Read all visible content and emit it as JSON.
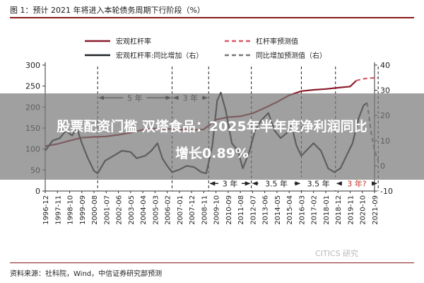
{
  "figure": {
    "title": "图 1：预计 2021 年将进入本轮债务周期下行阶段（%）",
    "source": "资料来源：社科院，Wind，中信证券研究部预测",
    "watermark": "CITICS 研究"
  },
  "overlay": {
    "line1": "股票配资门槛 双塔食品：2025年半年度净利润同比",
    "line2": "增长0.89%",
    "color": "#787878"
  },
  "chart_data": {
    "type": "line",
    "colors": {
      "leverage": "#8b1e2b",
      "leverage_forecast": "#d65c6a",
      "yoy": "#1f2328",
      "yoy_forecast": "#777777"
    },
    "x_ticks": [
      "1996-12",
      "1997-11",
      "1998-10",
      "1999-09",
      "2000-08",
      "2001-07",
      "2002-06",
      "2003-05",
      "2004-04",
      "2005-03",
      "2006-02",
      "2007-01",
      "2007-12",
      "2008-11",
      "2009-10",
      "2010-09",
      "2011-08",
      "2012-07",
      "2013-06",
      "2014-05",
      "2015-04",
      "2016-03",
      "2017-02",
      "2018-01",
      "2018-12",
      "2019-11",
      "2020-10",
      "2021-09"
    ],
    "ylim_left": [
      0,
      300
    ],
    "yticks_left": [
      "0",
      "50",
      "100",
      "150",
      "200",
      "250",
      "300"
    ],
    "ylim_right": [
      -10,
      40
    ],
    "yticks_right": [
      "-10",
      "0",
      "10",
      "20",
      "30",
      "40"
    ],
    "legend": [
      {
        "label": "宏观杠杆率",
        "key": "leverage",
        "dash": false
      },
      {
        "label": "杠杆率预测值",
        "key": "leverage_forecast",
        "dash": true
      },
      {
        "label": "宏观杠杆率:同比增加（右）",
        "key": "yoy",
        "dash": false
      },
      {
        "label": "同比增加预测值（右）",
        "key": "yoy_forecast",
        "dash": true
      }
    ],
    "series": [
      {
        "name": "宏观杠杆率",
        "key": "leverage",
        "axis": "left",
        "points": [
          [
            0,
            107
          ],
          [
            1,
            112
          ],
          [
            2,
            120
          ],
          [
            3,
            127
          ],
          [
            4,
            129
          ],
          [
            5,
            130
          ],
          [
            6,
            134
          ],
          [
            7,
            139
          ],
          [
            8,
            146
          ],
          [
            9,
            149
          ],
          [
            10,
            148
          ],
          [
            11,
            147
          ],
          [
            12,
            145
          ],
          [
            13,
            147
          ],
          [
            14,
            170
          ],
          [
            15,
            176
          ],
          [
            16,
            178
          ],
          [
            17,
            185
          ],
          [
            18,
            198
          ],
          [
            19,
            212
          ],
          [
            20,
            228
          ],
          [
            21,
            238
          ],
          [
            22,
            241
          ],
          [
            23,
            243
          ],
          [
            24,
            246
          ],
          [
            25,
            249
          ],
          [
            25.5,
            263
          ]
        ]
      },
      {
        "name": "杠杆率预测值",
        "key": "leverage_forecast",
        "axis": "left",
        "points": [
          [
            25.5,
            263
          ],
          [
            26,
            267
          ],
          [
            26.6,
            269
          ],
          [
            27.3,
            270
          ]
        ]
      },
      {
        "name": "宏观杠杆率:同比增加（右）",
        "key": "yoy",
        "axis": "right",
        "points": [
          [
            0,
            6
          ],
          [
            0.6,
            10
          ],
          [
            1.2,
            11
          ],
          [
            1.7,
            14
          ],
          [
            2.2,
            12
          ],
          [
            2.6,
            15
          ],
          [
            3.0,
            9
          ],
          [
            3.5,
            3
          ],
          [
            4.0,
            -2
          ],
          [
            4.3,
            -3
          ],
          [
            4.9,
            2
          ],
          [
            5.6,
            4
          ],
          [
            6.3,
            6
          ],
          [
            7.0,
            5.5
          ],
          [
            7.5,
            3
          ],
          [
            8.2,
            4
          ],
          [
            8.7,
            6
          ],
          [
            9.2,
            9
          ],
          [
            9.6,
            3
          ],
          [
            10.0,
            0
          ],
          [
            10.4,
            -2.5
          ],
          [
            11.0,
            -1.5
          ],
          [
            11.6,
            0
          ],
          [
            12.2,
            -0.5
          ],
          [
            12.8,
            -2.5
          ],
          [
            13.2,
            -3
          ],
          [
            13.7,
            8
          ],
          [
            14.1,
            26
          ],
          [
            14.4,
            29
          ],
          [
            14.8,
            22
          ],
          [
            15.3,
            9
          ],
          [
            15.8,
            6
          ],
          [
            16.2,
            -1
          ],
          [
            16.7,
            5
          ],
          [
            17.2,
            14
          ],
          [
            17.7,
            18
          ],
          [
            18.3,
            21
          ],
          [
            18.8,
            14
          ],
          [
            19.3,
            11
          ],
          [
            19.8,
            13
          ],
          [
            20.2,
            16
          ],
          [
            20.6,
            8
          ],
          [
            21.0,
            4
          ],
          [
            21.4,
            6
          ],
          [
            22.0,
            9
          ],
          [
            22.6,
            6
          ],
          [
            23.2,
            -1
          ],
          [
            23.7,
            -2.5
          ],
          [
            24.2,
            -1
          ],
          [
            24.7,
            4
          ],
          [
            25.2,
            9
          ],
          [
            25.7,
            19
          ],
          [
            26.1,
            24
          ],
          [
            26.4,
            25
          ]
        ]
      },
      {
        "name": "同比增加预测值（右）",
        "key": "yoy_forecast",
        "axis": "right",
        "points": [
          [
            26.4,
            25
          ],
          [
            26.7,
            14
          ],
          [
            27.0,
            6
          ],
          [
            27.3,
            2
          ]
        ]
      }
    ],
    "annotations": {
      "vlines": [
        4.3,
        10.4,
        13.4,
        16.9,
        21.0,
        23.8,
        27.3
      ],
      "periods": [
        {
          "label": "5 年",
          "from": 4.3,
          "to": 10.4,
          "y": 27,
          "arrows": "both"
        },
        {
          "label": "3 年",
          "from": 10.4,
          "to": 13.4,
          "y": 27,
          "arrows": "both"
        },
        {
          "label": "3 年",
          "from": 13.4,
          "to": 16.9,
          "y": -7,
          "arrows": "both"
        },
        {
          "label": "3.5 年",
          "from": 16.9,
          "to": 21.0,
          "y": -7,
          "arrows": "both"
        },
        {
          "label": "3.5 年",
          "from": 21.0,
          "to": 23.8,
          "y": -7,
          "arrows": "both"
        },
        {
          "label": "3 年?",
          "from": 23.8,
          "to": 27.3,
          "y": -7,
          "arrows": "both",
          "label_color": "#c0392b"
        }
      ]
    }
  }
}
